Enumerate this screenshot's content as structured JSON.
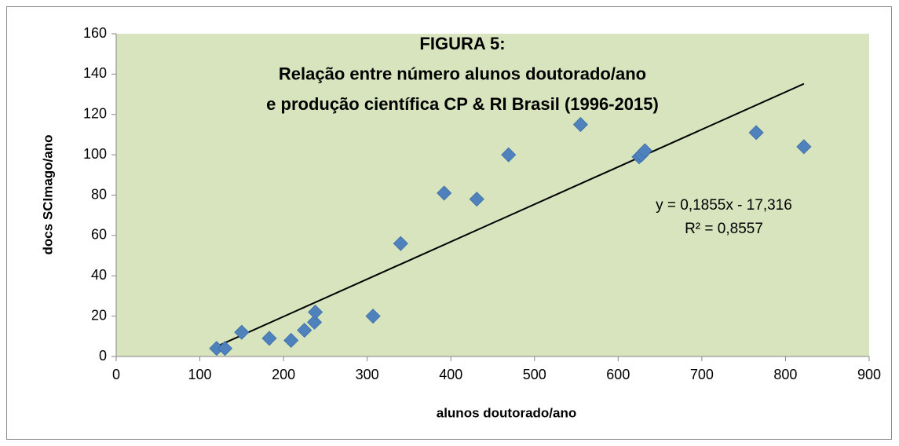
{
  "chart_data": {
    "type": "scatter",
    "title": [
      "FIGURA 5:",
      "Relação entre número alunos doutorado/ano",
      "e produção científica CP & RI Brasil (1996-2015)"
    ],
    "x_label": "alunos doutorado/ano",
    "y_label": "docs SCImago/ano",
    "x": [
      120,
      130,
      150,
      183,
      209,
      225,
      237,
      238,
      307,
      340,
      392,
      431,
      469,
      555,
      625,
      628,
      632,
      765,
      822
    ],
    "values": [
      4,
      4,
      12,
      9,
      8,
      13,
      17,
      22,
      20,
      56,
      81,
      78,
      100,
      115,
      99,
      100,
      102,
      111,
      104
    ],
    "color": "#4f81bd",
    "plot_background": "#d7e4bd",
    "trendline": {
      "x": [
        120,
        822
      ],
      "y": [
        4.94,
        135.2
      ],
      "color": "#000000"
    },
    "annotations": [
      "y = 0,1855x - 17,316",
      "R² = 0,8557"
    ],
    "xlim": [
      0,
      900
    ],
    "xticks": [
      0,
      100,
      200,
      300,
      400,
      500,
      600,
      700,
      800,
      900
    ],
    "ylim": [
      0,
      160
    ],
    "yticks": [
      0,
      20,
      40,
      60,
      80,
      100,
      120,
      140,
      160
    ],
    "grid": false
  }
}
